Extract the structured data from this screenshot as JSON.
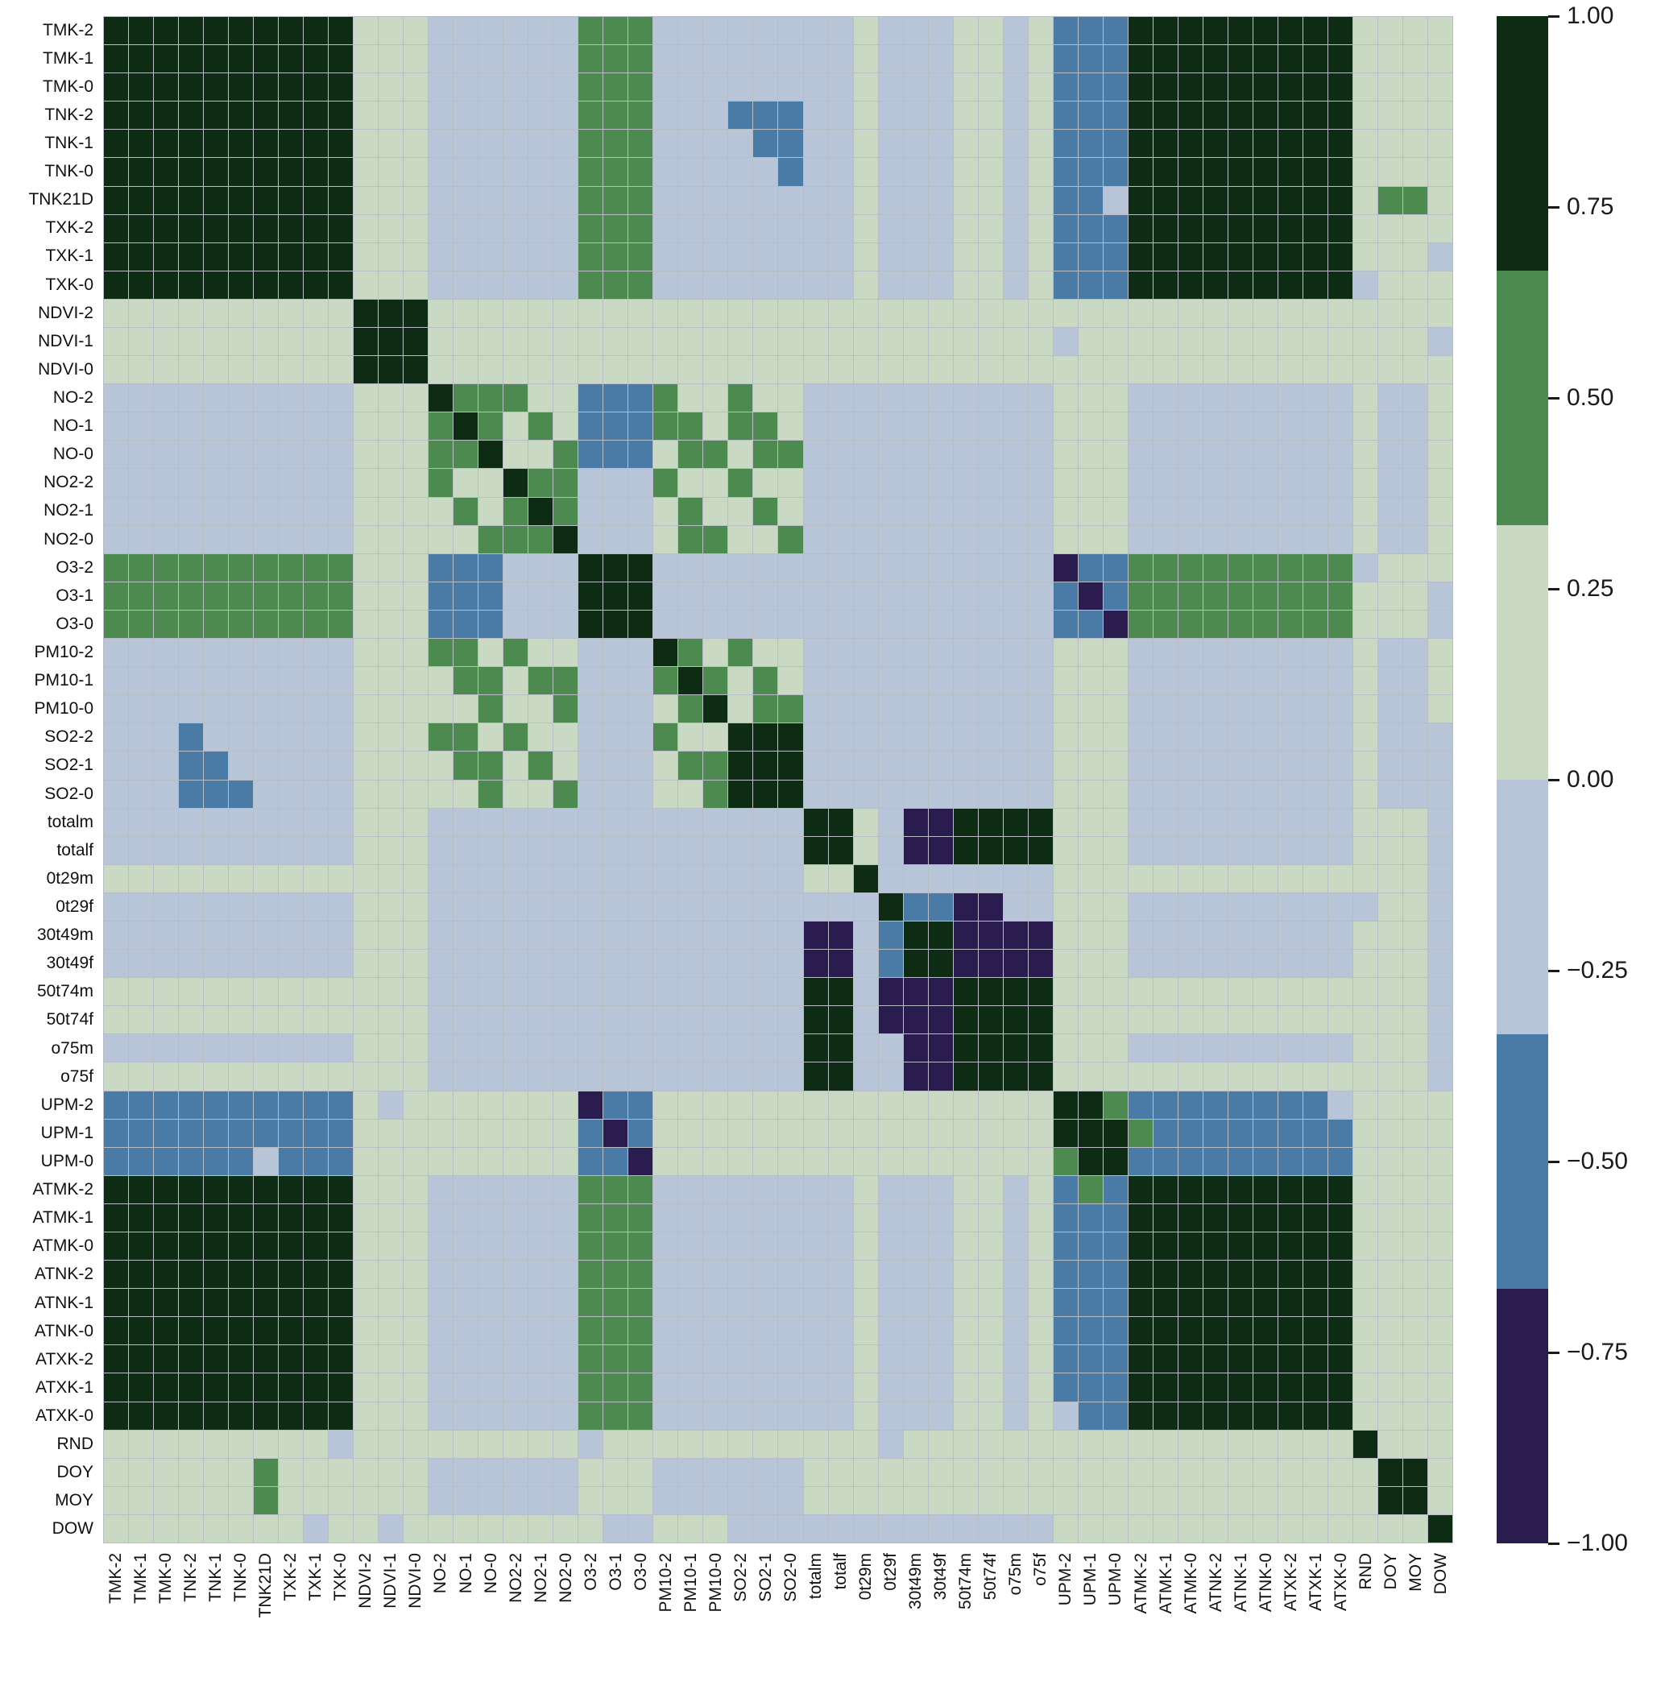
{
  "chart_data": {
    "type": "heatmap",
    "subtype": "correlation-matrix",
    "title": "",
    "x_labels": [
      "TMK-2",
      "TMK-1",
      "TMK-0",
      "TNK-2",
      "TNK-1",
      "TNK-0",
      "TNK21D",
      "TXK-2",
      "TXK-1",
      "TXK-0",
      "NDVI-2",
      "NDVI-1",
      "NDVI-0",
      "NO-2",
      "NO-1",
      "NO-0",
      "NO2-2",
      "NO2-1",
      "NO2-0",
      "O3-2",
      "O3-1",
      "O3-0",
      "PM10-2",
      "PM10-1",
      "PM10-0",
      "SO2-2",
      "SO2-1",
      "SO2-0",
      "totalm",
      "totalf",
      "0t29m",
      "0t29f",
      "30t49m",
      "30t49f",
      "50t74m",
      "50t74f",
      "o75m",
      "o75f",
      "UPM-2",
      "UPM-1",
      "UPM-0",
      "ATMK-2",
      "ATMK-1",
      "ATMK-0",
      "ATNK-2",
      "ATNK-1",
      "ATNK-0",
      "ATXK-2",
      "ATXK-1",
      "ATXK-0",
      "RND",
      "DOY",
      "MOY",
      "DOW"
    ],
    "y_labels": [
      "TMK-2",
      "TMK-1",
      "TMK-0",
      "TNK-2",
      "TNK-1",
      "TNK-0",
      "TNK21D",
      "TXK-2",
      "TXK-1",
      "TXK-0",
      "NDVI-2",
      "NDVI-1",
      "NDVI-0",
      "NO-2",
      "NO-1",
      "NO-0",
      "NO2-2",
      "NO2-1",
      "NO2-0",
      "O3-2",
      "O3-1",
      "O3-0",
      "PM10-2",
      "PM10-1",
      "PM10-0",
      "SO2-2",
      "SO2-1",
      "SO2-0",
      "totalm",
      "totalf",
      "0t29m",
      "0t29f",
      "30t49m",
      "30t49f",
      "50t74m",
      "50t74f",
      "o75m",
      "o75f",
      "UPM-2",
      "UPM-1",
      "UPM-0",
      "ATMK-2",
      "ATMK-1",
      "ATMK-0",
      "ATNK-2",
      "ATNK-1",
      "ATNK-0",
      "ATXK-2",
      "ATXK-1",
      "ATXK-0",
      "RND",
      "DOY",
      "MOY",
      "DOW"
    ],
    "value_bands": [
      {
        "level": 5,
        "range": [
          0.667,
          1.0
        ],
        "color": "#0e2c14"
      },
      {
        "level": 4,
        "range": [
          0.333,
          0.667
        ],
        "color": "#4c8a50"
      },
      {
        "level": 3,
        "range": [
          0.0,
          0.333
        ],
        "color": "#cad9c4"
      },
      {
        "level": 2,
        "range": [
          -0.333,
          0.0
        ],
        "color": "#b8c5d9"
      },
      {
        "level": 1,
        "range": [
          -0.667,
          -0.333
        ],
        "color": "#4a7aa6"
      },
      {
        "level": 0,
        "range": [
          -1.0,
          -0.667
        ],
        "color": "#2b1c50"
      }
    ],
    "matrix_levels": [
      "555555555533322222244422222222322233231115555555553333",
      "555555555533322222244422222222322233231115555555553333",
      "555555555533322222244422222222322233231115555555553333",
      "555555555533322222244422211122322233231115555555553333",
      "555555555533322222244422221122322233231115555555553333",
      "555555555533322222244422222122322233231115555555553333",
      "555555555533322222244422222222322233231125555555553443",
      "555555555533322222244422222222322233231115555555553333",
      "555555555533322222244422222222322233231115555555553332",
      "555555555533322222244422222222322233231115555555552333",
      "333333333355533333333333333333333333333333333333333333",
      "333333333355533333333333333333333333332333333333333332",
      "333333333355533333333333333333333333333333333333333333",
      "222222222233354443311143343322222222223332222222223223",
      "222222222233345434311144344322222222223332222222223223",
      "222222222233344533411134434422222222223332222222223223",
      "222222222233343354422243343322222222223332222222223223",
      "222222222233334345422234334322222222223332222222223223",
      "222222222233333444522234433422222222223332222222223223",
      "444444444433311122255522222222222222220114444444442333",
      "444444444433311122255522222222222222221014444444443332",
      "444444444433311122255522222222222222221104444444443332",
      "222222222233344343322254343322222222223332222222223223",
      "222222222233334434422245434322222222223332222222223223",
      "222222222233333433422234534422222222223332222222223223",
      "222122222233344343322243355522222222223332222222223222",
      "222112222233334434322234455522222222223332222222223222",
      "222111222233333433422233455522222222223332222222223222",
      "222222222233322222222222222255320055553332222222223332",
      "222222222233322222222222222255320055553332222222223332",
      "333333333333322222222222222233522222223333333333333332",
      "222222222233322222222222222222251100223332222222222332",
      "222222222233322222222222222200215500003332222222223332",
      "222222222233322222222222222200215500003332222222223332",
      "333333333333322222222222222255200055553333333333333332",
      "333333333333322222222222222255200055553333333333333332",
      "222222222233322222222222222255220055553332222222223332",
      "333333333333322222222222222255220055553333333333333332",
      "111111111132333333301133333333333333335541111111123333",
      "111111111133333333310133333333333333335554111111113333",
      "111111211133333333311033333333333333334551111111113333",
      "555555555533322222244422222222322233231415555555553333",
      "555555555533322222244422222222322233231115555555553333",
      "555555555533322222244422222222322233231115555555553333",
      "555555555533322222244422222222322233231115555555553333",
      "555555555533322222244422222222322233231115555555553333",
      "555555555533322222244422222222322233231115555555553333",
      "555555555533322222244422222222322233231115555555553333",
      "555555555533322222244422222222322233231115555555553333",
      "555555555533322222244422222222322233232115555555553333",
      "333333333233333333323333333333323333333333333333335333",
      "333333433333322222233322222233333333333333333333333553",
      "333333433333322222233322222233333333333333333333333553",
      "333333332332333333332233322222222222223333333333333335"
    ],
    "colorbar": {
      "min": -1,
      "max": 1,
      "tick_labels": [
        "1.00",
        "0.75",
        "0.50",
        "0.25",
        "0.00",
        "−0.25",
        "−0.50",
        "−0.75",
        "−1.00"
      ],
      "tick_values": [
        1,
        0.75,
        0.5,
        0.25,
        0,
        -0.25,
        -0.5,
        -0.75,
        -1
      ]
    }
  },
  "style": {
    "gridline_color": "#b9bec6",
    "background": "#ffffff",
    "label_color": "#111111"
  }
}
